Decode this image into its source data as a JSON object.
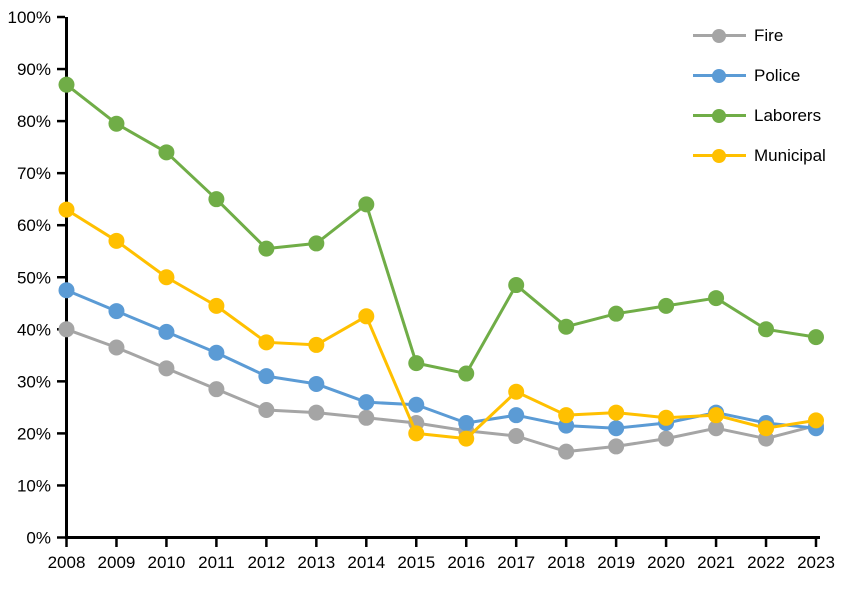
{
  "chart_data": {
    "type": "line",
    "title": "",
    "xlabel": "",
    "ylabel": "",
    "x": [
      "2008",
      "2009",
      "2010",
      "2011",
      "2012",
      "2013",
      "2014",
      "2015",
      "2016",
      "2017",
      "2018",
      "2019",
      "2020",
      "2021",
      "2022",
      "2023"
    ],
    "ylim": [
      0,
      100
    ],
    "ytick_step": 10,
    "ytick_suffix": "%",
    "grid": false,
    "legend_position": "top-right",
    "background_color": "#FFFFFF",
    "axis_color": "#000000",
    "series": [
      {
        "name": "Fire",
        "color": "#A5A5A5",
        "values": [
          40,
          36.5,
          32.5,
          28.5,
          24.5,
          24,
          23,
          22,
          20.5,
          19.5,
          16.5,
          17.5,
          19,
          21,
          19,
          21.5
        ]
      },
      {
        "name": "Police",
        "color": "#5B9BD5",
        "values": [
          47.5,
          43.5,
          39.5,
          35.5,
          31,
          29.5,
          26,
          25.5,
          22,
          23.5,
          21.5,
          21,
          22,
          24,
          22,
          21
        ]
      },
      {
        "name": "Laborers",
        "color": "#70AD47",
        "values": [
          87,
          79.5,
          74,
          65,
          55.5,
          56.5,
          64,
          33.5,
          31.5,
          48.5,
          40.5,
          43,
          44.5,
          46,
          40,
          38.5
        ]
      },
      {
        "name": "Municipal",
        "color": "#FFC000",
        "values": [
          63,
          57,
          50,
          44.5,
          37.5,
          37,
          42.5,
          20,
          19,
          28,
          23.5,
          24,
          23,
          23.5,
          21,
          22.5
        ]
      }
    ]
  }
}
